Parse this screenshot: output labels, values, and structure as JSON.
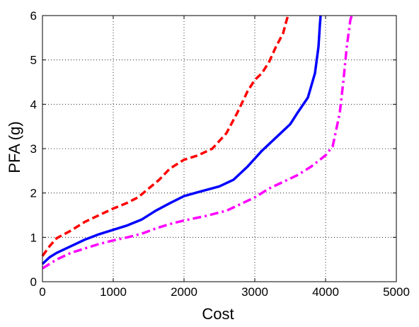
{
  "chart_data": {
    "type": "line",
    "title": "",
    "xlabel": "Cost",
    "ylabel": "PFA (g)",
    "xlim": [
      0,
      5000
    ],
    "ylim": [
      0,
      6
    ],
    "x_ticks": [
      0,
      1000,
      2000,
      3000,
      4000,
      5000
    ],
    "y_ticks": [
      0,
      1,
      2,
      3,
      4,
      5,
      6
    ],
    "x_tick_labels": [
      "0",
      "1000",
      "2000",
      "3000",
      "4000",
      "5000"
    ],
    "y_tick_labels": [
      "0",
      "1",
      "2",
      "3",
      "4",
      "5",
      "6"
    ],
    "grid": true,
    "legend": null,
    "series": [
      {
        "color": "#ff0000",
        "line_style": "dashed",
        "points": [
          [
            0,
            0.58
          ],
          [
            100,
            0.8
          ],
          [
            200,
            0.98
          ],
          [
            400,
            1.15
          ],
          [
            600,
            1.35
          ],
          [
            800,
            1.5
          ],
          [
            1000,
            1.65
          ],
          [
            1200,
            1.78
          ],
          [
            1350,
            1.9
          ],
          [
            1500,
            2.1
          ],
          [
            1650,
            2.3
          ],
          [
            1800,
            2.55
          ],
          [
            2000,
            2.75
          ],
          [
            2200,
            2.85
          ],
          [
            2400,
            3.0
          ],
          [
            2600,
            3.35
          ],
          [
            2750,
            3.8
          ],
          [
            2900,
            4.3
          ],
          [
            3000,
            4.55
          ],
          [
            3100,
            4.7
          ],
          [
            3200,
            4.95
          ],
          [
            3300,
            5.3
          ],
          [
            3400,
            5.6
          ],
          [
            3450,
            5.9
          ],
          [
            3470,
            6.0
          ]
        ]
      },
      {
        "color": "#0000ff",
        "line_style": "solid",
        "points": [
          [
            0,
            0.4
          ],
          [
            100,
            0.55
          ],
          [
            200,
            0.65
          ],
          [
            400,
            0.8
          ],
          [
            600,
            0.95
          ],
          [
            800,
            1.07
          ],
          [
            1000,
            1.17
          ],
          [
            1200,
            1.27
          ],
          [
            1400,
            1.4
          ],
          [
            1600,
            1.6
          ],
          [
            1800,
            1.77
          ],
          [
            2000,
            1.93
          ],
          [
            2200,
            2.02
          ],
          [
            2500,
            2.15
          ],
          [
            2700,
            2.3
          ],
          [
            2900,
            2.6
          ],
          [
            3100,
            2.95
          ],
          [
            3300,
            3.25
          ],
          [
            3500,
            3.55
          ],
          [
            3600,
            3.8
          ],
          [
            3750,
            4.15
          ],
          [
            3850,
            4.7
          ],
          [
            3900,
            5.3
          ],
          [
            3920,
            5.8
          ],
          [
            3930,
            6.0
          ]
        ]
      },
      {
        "color": "#ff00ff",
        "line_style": "dashdot",
        "points": [
          [
            0,
            0.3
          ],
          [
            100,
            0.4
          ],
          [
            200,
            0.5
          ],
          [
            400,
            0.65
          ],
          [
            600,
            0.75
          ],
          [
            800,
            0.85
          ],
          [
            1000,
            0.93
          ],
          [
            1200,
            1.0
          ],
          [
            1400,
            1.08
          ],
          [
            1600,
            1.2
          ],
          [
            1800,
            1.3
          ],
          [
            2000,
            1.38
          ],
          [
            2300,
            1.48
          ],
          [
            2600,
            1.6
          ],
          [
            2800,
            1.75
          ],
          [
            3000,
            1.9
          ],
          [
            3200,
            2.1
          ],
          [
            3400,
            2.25
          ],
          [
            3600,
            2.4
          ],
          [
            3800,
            2.6
          ],
          [
            4000,
            2.85
          ],
          [
            4100,
            3.05
          ],
          [
            4200,
            3.8
          ],
          [
            4250,
            4.5
          ],
          [
            4300,
            5.3
          ],
          [
            4350,
            5.9
          ],
          [
            4370,
            6.0
          ]
        ]
      }
    ]
  }
}
